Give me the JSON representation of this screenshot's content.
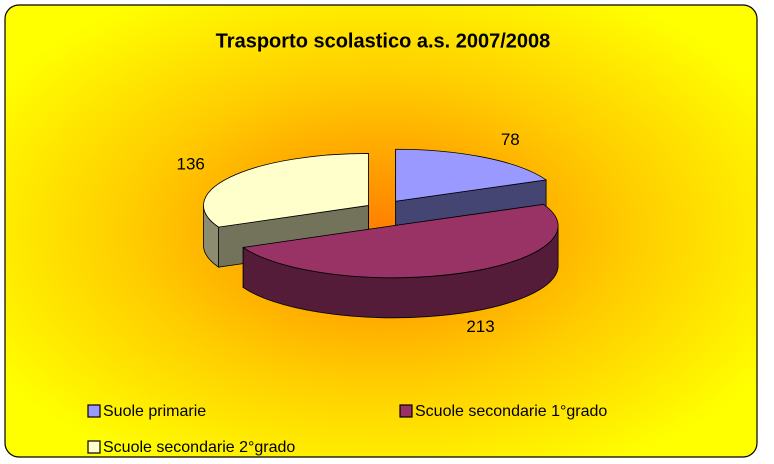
{
  "chart_data": {
    "type": "pie",
    "title": "Trasporto scolastico a.s. 2007/2008",
    "categories": [
      "Suole primarie",
      "Scuole secondarie 1°grado",
      "Scuole secondarie 2°grado"
    ],
    "values": [
      78,
      213,
      136
    ],
    "colors": [
      "#9999ff",
      "#993366",
      "#ffffcc"
    ]
  }
}
